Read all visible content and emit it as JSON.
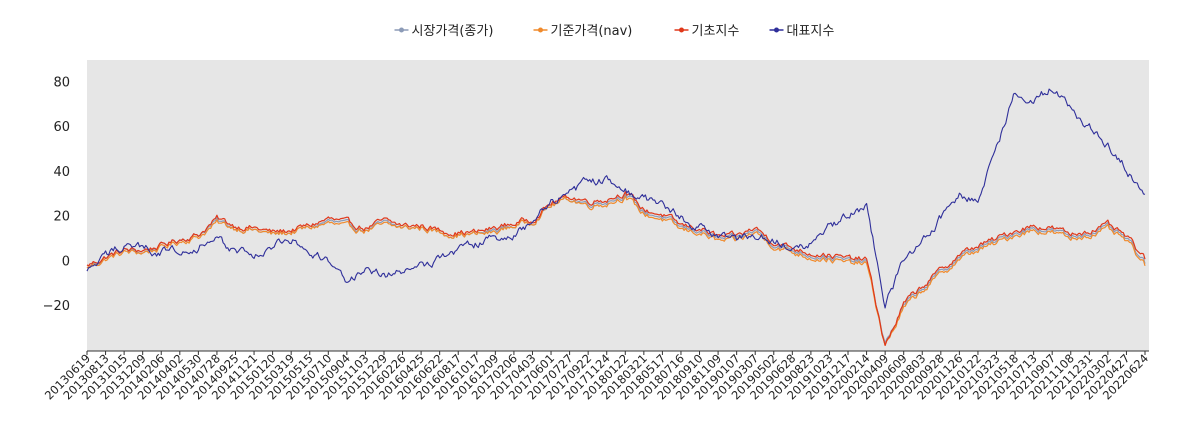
{
  "chart_data": {
    "type": "line",
    "title": "",
    "xlabel": "",
    "ylabel": "",
    "ylim": [
      -40,
      90
    ],
    "yticks": [
      -20,
      0,
      20,
      40,
      60,
      80
    ],
    "grid": false,
    "legend_position": "top",
    "background": "#e6e6e6",
    "x_tick_labels": [
      "20130619",
      "20130813",
      "20131015",
      "20131209",
      "20140206",
      "20140402",
      "20140530",
      "20140728",
      "20140925",
      "20141121",
      "20150120",
      "20150319",
      "20150515",
      "20150710",
      "20150904",
      "20151103",
      "20151229",
      "20160226",
      "20160425",
      "20160622",
      "20160817",
      "20161017",
      "20161209",
      "20170206",
      "20170403",
      "20170601",
      "20170727",
      "20170922",
      "20171124",
      "20180122",
      "20180321",
      "20180517",
      "20180716",
      "20180910",
      "20181109",
      "20190107",
      "20190307",
      "20190502",
      "20190628",
      "20190823",
      "20191023",
      "20191217",
      "20200214",
      "20200409",
      "20200609",
      "20200803",
      "20200928",
      "20201126",
      "20210122",
      "20210323",
      "20210518",
      "20210713",
      "20210907",
      "20211108",
      "20211231",
      "20220302",
      "20220427",
      "20220624"
    ],
    "series": [
      {
        "name": "시장가격(종가)",
        "color": "#8c9bb7",
        "values": [
          -3,
          2,
          5,
          4,
          7,
          10,
          12,
          18,
          15,
          14,
          12,
          13,
          15,
          18,
          16,
          14,
          17,
          15,
          15,
          13,
          12,
          12,
          14,
          16,
          18,
          25,
          28,
          26,
          27,
          30,
          22,
          20,
          15,
          14,
          10,
          10,
          14,
          8,
          5,
          3,
          2,
          0,
          0,
          -37,
          -20,
          -12,
          -5,
          2,
          6,
          9,
          13,
          15,
          14,
          11,
          13,
          15,
          10,
          -1
        ]
      },
      {
        "name": "기준가격(nav)",
        "color": "#f08a2c",
        "values": [
          -3,
          1,
          4,
          4,
          6,
          9,
          11,
          17,
          15,
          14,
          12,
          13,
          15,
          17,
          15,
          14,
          16,
          15,
          15,
          13,
          12,
          12,
          13,
          16,
          18,
          25,
          28,
          25,
          26,
          29,
          21,
          19,
          14,
          13,
          9,
          9,
          13,
          7,
          4,
          2,
          1,
          -1,
          -1,
          -38,
          -21,
          -13,
          -6,
          1,
          5,
          8,
          12,
          14,
          13,
          10,
          12,
          14,
          9,
          -2
        ]
      },
      {
        "name": "기초지수",
        "color": "#e0381a",
        "values": [
          -2,
          2,
          5,
          5,
          7,
          10,
          12,
          19,
          16,
          15,
          13,
          14,
          16,
          19,
          17,
          15,
          18,
          16,
          16,
          14,
          13,
          13,
          15,
          17,
          19,
          26,
          29,
          27,
          28,
          31,
          23,
          21,
          16,
          15,
          11,
          11,
          15,
          9,
          6,
          4,
          3,
          1,
          1,
          -38,
          -19,
          -11,
          -4,
          3,
          7,
          10,
          14,
          16,
          15,
          12,
          14,
          16,
          11,
          1
        ]
      },
      {
        "name": "대표지수",
        "color": "#2f2f9a",
        "values": [
          -5,
          2,
          8,
          6,
          4,
          6,
          7,
          9,
          5,
          3,
          6,
          10,
          5,
          0,
          -8,
          -5,
          -7,
          -4,
          -2,
          2,
          5,
          8,
          10,
          12,
          18,
          27,
          30,
          35,
          37,
          32,
          28,
          25,
          20,
          15,
          12,
          9,
          12,
          10,
          8,
          8,
          15,
          20,
          25,
          -20,
          0,
          10,
          20,
          30,
          28,
          50,
          75,
          72,
          78,
          68,
          60,
          52,
          42,
          30
        ]
      }
    ]
  }
}
